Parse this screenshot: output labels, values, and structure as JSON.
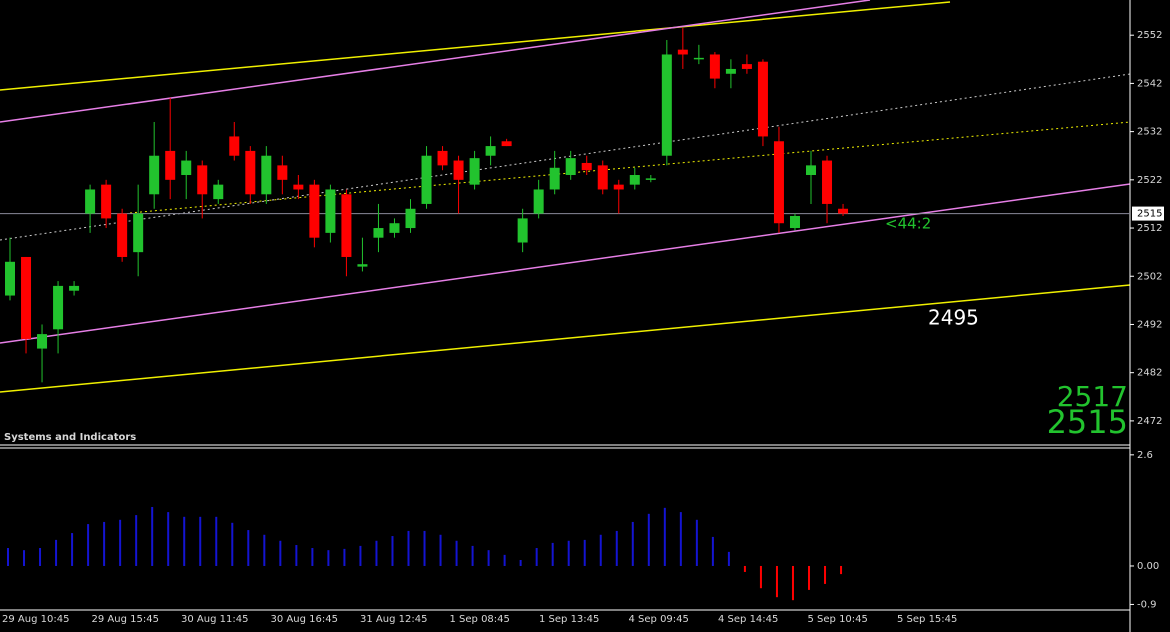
{
  "chart_data": [
    {
      "type": "candlestick",
      "up_color": "#22c32e",
      "down_color": "#ff0000",
      "open": [
        2498,
        2506,
        2487,
        2491,
        2499,
        2515,
        2521,
        2515,
        2507,
        2519,
        2528,
        2523,
        2525,
        2518,
        2531,
        2528,
        2519,
        2525,
        2521,
        2521,
        2511,
        2519,
        2504,
        2510,
        2511,
        2512,
        2517,
        2528,
        2526,
        2521,
        2527,
        2530,
        2509,
        2515,
        2520,
        2523,
        2525.5,
        2525,
        2521,
        2521,
        2522,
        2527,
        2549,
        2547,
        2548,
        2544,
        2546,
        2546.5,
        2530,
        2512,
        2523,
        2526,
        2516
      ],
      "high": [
        2510,
        2506,
        2492,
        2501,
        2501,
        2521,
        2522,
        2516,
        2521,
        2534,
        2539,
        2528,
        2526,
        2522,
        2534,
        2529,
        2529,
        2527,
        2523,
        2522,
        2521,
        2520,
        2510,
        2517,
        2514,
        2518,
        2529,
        2529,
        2527,
        2528,
        2531,
        2530.5,
        2516,
        2522,
        2528,
        2528,
        2527,
        2526,
        2522,
        2524.5,
        2523,
        2551,
        2553.5,
        2550,
        2548.5,
        2547,
        2548,
        2547,
        2533,
        2515,
        2528,
        2527,
        2517
      ],
      "low": [
        2497,
        2486,
        2480,
        2486,
        2498,
        2511,
        2512,
        2505,
        2502,
        2516,
        2518,
        2518,
        2514,
        2517,
        2526,
        2517,
        2517,
        2519,
        2518,
        2508,
        2509,
        2502,
        2503,
        2507,
        2510,
        2511,
        2516,
        2524,
        2515,
        2520,
        2525,
        2529,
        2507,
        2514,
        2519,
        2522,
        2523,
        2519,
        2515,
        2520,
        2521.5,
        2525,
        2545,
        2546,
        2541,
        2541,
        2544,
        2529,
        2511,
        2511.5,
        2517,
        2513,
        2514.5
      ],
      "close": [
        2505,
        2489,
        2490,
        2500,
        2500,
        2520,
        2514,
        2506,
        2515,
        2527,
        2522,
        2526,
        2519,
        2521,
        2527,
        2519,
        2527,
        2522,
        2520,
        2510,
        2520,
        2506,
        2504.5,
        2512,
        2513,
        2516,
        2527,
        2525,
        2522,
        2526.5,
        2529,
        2529,
        2514,
        2520,
        2524.5,
        2526.5,
        2524,
        2520,
        2520,
        2523,
        2522.3,
        2548,
        2548,
        2547.3,
        2543,
        2545,
        2545,
        2531,
        2513,
        2514.5,
        2525,
        2517,
        2515
      ],
      "ylim": [
        2467,
        2559.3
      ],
      "yticks": [
        2552,
        2542,
        2532,
        2522,
        2512,
        2502,
        2492,
        2482,
        2472
      ],
      "current_price": 2515,
      "panel_title": "Systems and Indicators",
      "annotations": [
        "<44:2",
        "2495",
        "2517",
        "2515"
      ],
      "x_labels": [
        "29 Aug 10:45",
        "29 Aug 15:45",
        "30 Aug 11:45",
        "30 Aug 16:45",
        "31 Aug 12:45",
        "1 Sep 08:45",
        "1 Sep 13:45",
        "4 Sep 09:45",
        "4 Sep 14:45",
        "5 Sep 10:45",
        "5 Sep 15:45"
      ]
    },
    {
      "type": "bar",
      "color": "#1414d2",
      "negative_color": "#ff0000",
      "values": [
        0.42,
        0.37,
        0.42,
        0.61,
        0.77,
        0.98,
        1.03,
        1.08,
        1.19,
        1.38,
        1.26,
        1.15,
        1.15,
        1.15,
        1.01,
        0.84,
        0.73,
        0.59,
        0.49,
        0.42,
        0.37,
        0.4,
        0.47,
        0.59,
        0.7,
        0.82,
        0.82,
        0.73,
        0.59,
        0.47,
        0.37,
        0.26,
        0.14,
        0.42,
        0.54,
        0.59,
        0.61,
        0.73,
        0.82,
        1.03,
        1.22,
        1.36,
        1.26,
        1.08,
        0.68,
        0.33,
        -0.14,
        -0.52,
        -0.73,
        -0.8,
        -0.56,
        -0.42,
        -0.19
      ],
      "ylim": [
        -1.03,
        2.76
      ],
      "yticks": [
        2.6,
        {
          "value": 0,
          "label": "0.00"
        },
        -0.9
      ]
    }
  ]
}
